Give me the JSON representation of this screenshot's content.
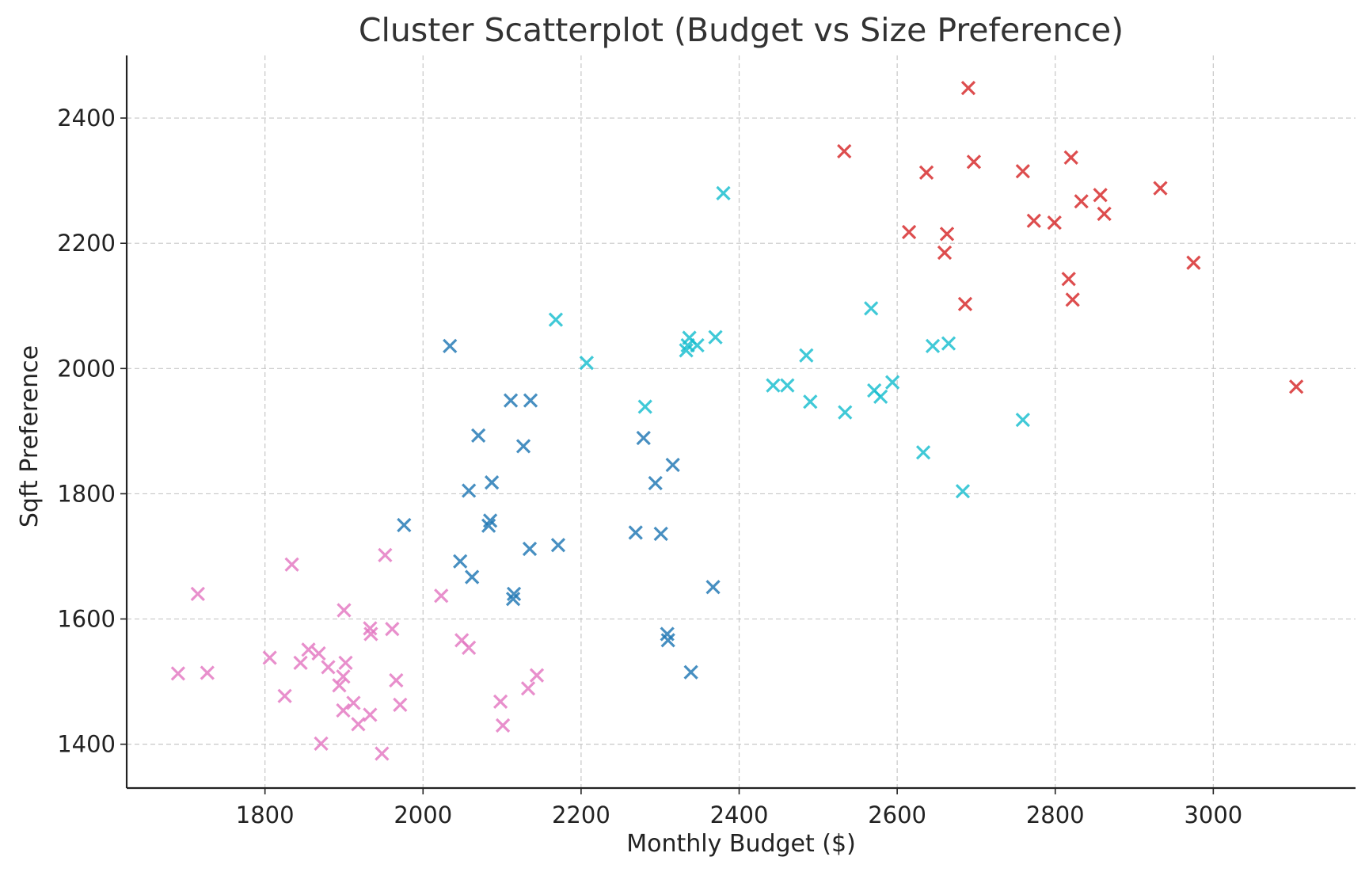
{
  "chart_data": {
    "type": "scatter",
    "title": "Cluster Scatterplot (Budget vs Size Preference)",
    "xlabel": "Monthly Budget ($)",
    "ylabel": "Sqft Preference",
    "xlim": [
      1625,
      3180
    ],
    "ylim": [
      1330,
      2500
    ],
    "xticks": [
      1800,
      2000,
      2200,
      2400,
      2600,
      2800,
      3000
    ],
    "yticks": [
      1400,
      1600,
      1800,
      2000,
      2200,
      2400
    ],
    "grid": true,
    "marker": "x",
    "series": [
      {
        "color": "#d62728",
        "points": [
          [
            2690,
            2448
          ],
          [
            2533,
            2347
          ],
          [
            2637,
            2313
          ],
          [
            2697,
            2330
          ],
          [
            2759,
            2315
          ],
          [
            2820,
            2337
          ],
          [
            2933,
            2288
          ],
          [
            2857,
            2277
          ],
          [
            2833,
            2267
          ],
          [
            2862,
            2247
          ],
          [
            2773,
            2236
          ],
          [
            2799,
            2233
          ],
          [
            2615,
            2218
          ],
          [
            2663,
            2215
          ],
          [
            2660,
            2185
          ],
          [
            2975,
            2169
          ],
          [
            2817,
            2143
          ],
          [
            2822,
            2110
          ],
          [
            2686,
            2103
          ],
          [
            3105,
            1971
          ]
        ]
      },
      {
        "color": "#17becf",
        "points": [
          [
            2380,
            2280
          ],
          [
            2168,
            2078
          ],
          [
            2207,
            2009
          ],
          [
            2337,
            2049
          ],
          [
            2370,
            2050
          ],
          [
            2333,
            2029
          ],
          [
            2335,
            2037
          ],
          [
            2347,
            2037
          ],
          [
            2567,
            2096
          ],
          [
            2645,
            2036
          ],
          [
            2665,
            2040
          ],
          [
            2485,
            2021
          ],
          [
            2443,
            1973
          ],
          [
            2461,
            1973
          ],
          [
            2490,
            1947
          ],
          [
            2281,
            1939
          ],
          [
            2534,
            1930
          ],
          [
            2571,
            1965
          ],
          [
            2579,
            1955
          ],
          [
            2594,
            1978
          ],
          [
            2759,
            1918
          ],
          [
            2633,
            1866
          ],
          [
            2683,
            1804
          ]
        ]
      },
      {
        "color": "#1f77b4",
        "points": [
          [
            2034,
            2036
          ],
          [
            2111,
            1949
          ],
          [
            2136,
            1949
          ],
          [
            2070,
            1893
          ],
          [
            2127,
            1876
          ],
          [
            2279,
            1889
          ],
          [
            2316,
            1846
          ],
          [
            2294,
            1817
          ],
          [
            2087,
            1818
          ],
          [
            2058,
            1805
          ],
          [
            2085,
            1757
          ],
          [
            2083,
            1749
          ],
          [
            1976,
            1750
          ],
          [
            2269,
            1738
          ],
          [
            2301,
            1736
          ],
          [
            2171,
            1718
          ],
          [
            2135,
            1712
          ],
          [
            2047,
            1692
          ],
          [
            2062,
            1667
          ],
          [
            2367,
            1651
          ],
          [
            2115,
            1640
          ],
          [
            2114,
            1632
          ],
          [
            2309,
            1576
          ],
          [
            2310,
            1566
          ],
          [
            2339,
            1515
          ]
        ]
      },
      {
        "color": "#e377c2",
        "points": [
          [
            1715,
            1640
          ],
          [
            1834,
            1687
          ],
          [
            1952,
            1702
          ],
          [
            2023,
            1637
          ],
          [
            1900,
            1614
          ],
          [
            1933,
            1585
          ],
          [
            1961,
            1584
          ],
          [
            1934,
            1576
          ],
          [
            2049,
            1566
          ],
          [
            2058,
            1554
          ],
          [
            1855,
            1551
          ],
          [
            1868,
            1545
          ],
          [
            1806,
            1538
          ],
          [
            1845,
            1530
          ],
          [
            1902,
            1530
          ],
          [
            1880,
            1523
          ],
          [
            1690,
            1513
          ],
          [
            1727,
            1514
          ],
          [
            1899,
            1508
          ],
          [
            2144,
            1510
          ],
          [
            1966,
            1502
          ],
          [
            1894,
            1494
          ],
          [
            2133,
            1489
          ],
          [
            1825,
            1477
          ],
          [
            2098,
            1468
          ],
          [
            1912,
            1466
          ],
          [
            1971,
            1463
          ],
          [
            1899,
            1454
          ],
          [
            1933,
            1447
          ],
          [
            1918,
            1432
          ],
          [
            2101,
            1430
          ],
          [
            1871,
            1401
          ],
          [
            1948,
            1385
          ]
        ]
      }
    ]
  }
}
